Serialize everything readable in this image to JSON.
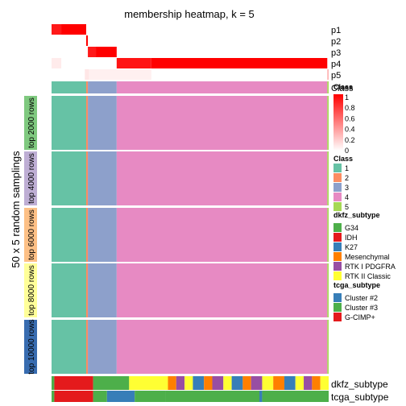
{
  "chart_data": {
    "type": "heatmap",
    "title": "membership heatmap, k = 5",
    "ylabel": "50 x 5 random samplings",
    "membership_rows": [
      "p1",
      "p2",
      "p3",
      "p4",
      "p5"
    ],
    "class_row_label": "Class",
    "groups": [
      "top 2000 rows",
      "top 4000 rows",
      "top 6000 rows",
      "top 8000 rows",
      "top 10000 rows"
    ],
    "group_colors": [
      "#7fc97f",
      "#beaed4",
      "#fdc086",
      "#ffff99",
      "#386cb0"
    ],
    "bottom_annotations": [
      "dkfz_subtype",
      "tcga_subtype"
    ],
    "legends": {
      "probability": {
        "title": "Class",
        "ticks": [
          "1",
          "0.8",
          "0.6",
          "0.4",
          "0.2",
          "0"
        ],
        "colors": [
          "#ffffff",
          "#ff0000"
        ]
      },
      "class": {
        "title": "Class",
        "items": [
          {
            "label": "1",
            "color": "#66c2a5"
          },
          {
            "label": "2",
            "color": "#fc8d62"
          },
          {
            "label": "3",
            "color": "#8da0cb"
          },
          {
            "label": "4",
            "color": "#e78ac3"
          },
          {
            "label": "5",
            "color": "#a6d854"
          }
        ]
      },
      "dkfz_subtype": {
        "title": "dkfz_subtype",
        "items": [
          {
            "label": "G34",
            "color": "#4daf4a"
          },
          {
            "label": "IDH",
            "color": "#e41a1c"
          },
          {
            "label": "K27",
            "color": "#377eb8"
          },
          {
            "label": "Mesenchymal",
            "color": "#ff7f00"
          },
          {
            "label": "RTK I PDGFRA",
            "color": "#984ea3"
          },
          {
            "label": "RTK II Classic",
            "color": "#ffff33"
          }
        ]
      },
      "tcga_subtype": {
        "title": "tcga_subtype",
        "items": [
          {
            "label": "Cluster #2",
            "color": "#377eb8"
          },
          {
            "label": "Cluster #3",
            "color": "#4daf4a"
          },
          {
            "label": "G-CIMP+",
            "color": "#e41a1c"
          }
        ]
      }
    },
    "class_assignment_columns": [
      {
        "class": 1,
        "from": 0.0,
        "to": 0.125
      },
      {
        "class": 2,
        "from": 0.125,
        "to": 0.131
      },
      {
        "class": 3,
        "from": 0.131,
        "to": 0.235
      },
      {
        "class": 4,
        "from": 0.235,
        "to": 0.995
      },
      {
        "class": 5,
        "from": 0.995,
        "to": 1.0
      }
    ],
    "membership_segments": [
      {
        "row": "p1",
        "from": 0.0,
        "to": 0.035,
        "value": 0.9
      },
      {
        "row": "p1",
        "from": 0.035,
        "to": 0.125,
        "value": 1.0
      },
      {
        "row": "p2",
        "from": 0.125,
        "to": 0.131,
        "value": 1.0
      },
      {
        "row": "p3",
        "from": 0.131,
        "to": 0.16,
        "value": 0.9
      },
      {
        "row": "p3",
        "from": 0.16,
        "to": 0.235,
        "value": 1.0
      },
      {
        "row": "p4",
        "from": 0.0,
        "to": 0.035,
        "value": 0.08
      },
      {
        "row": "p4",
        "from": 0.235,
        "to": 0.36,
        "value": 0.92
      },
      {
        "row": "p4",
        "from": 0.36,
        "to": 0.995,
        "value": 1.0
      },
      {
        "row": "p5",
        "from": 0.12,
        "to": 0.135,
        "value": 0.1
      },
      {
        "row": "p5",
        "from": 0.135,
        "to": 0.36,
        "value": 0.06
      },
      {
        "row": "p5",
        "from": 0.995,
        "to": 1.0,
        "value": 0.3
      }
    ]
  }
}
